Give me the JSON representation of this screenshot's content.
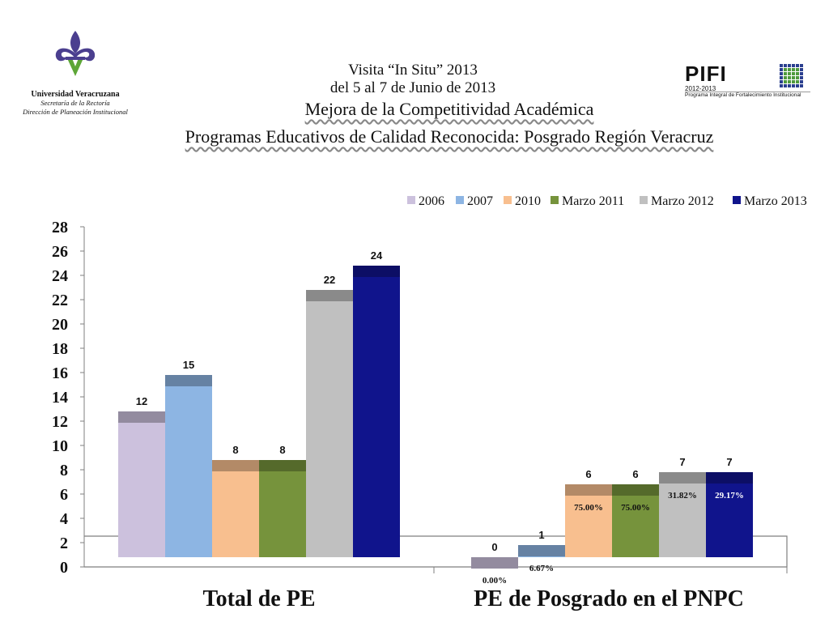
{
  "header": {
    "university": "Universidad Veracruzana",
    "secretaria": "Secretaría de la Rectoría",
    "direccion": "Dirección de Planeación Institucional",
    "visit_line1": "Visita “In Situ”  2013",
    "visit_line2": "del 5 al 7 de Junio de 2013",
    "title_line1": "Mejora de la Competitividad Académica",
    "title_line2": "Programas Educativos de Calidad Reconocida: Posgrado Región Veracruz",
    "pifi_word": "PIFI",
    "pifi_years": "2012-2013",
    "pifi_desc": "Programa Integral de Fortalecimiento Institucional"
  },
  "colors": {
    "2006": "#ccc1dd",
    "2007": "#8db5e3",
    "2010": "#f8bf8f",
    "Marzo 2011": "#76933c",
    "Marzo 2012": "#c0c0c0",
    "Marzo 2013": "#10148c",
    "uv_logo": "#4b3f8f",
    "uv_logo_accent": "#5da637",
    "pifi_grid_a": "#2b3f8f",
    "pifi_grid_b": "#4f9a3c"
  },
  "chart_data": {
    "type": "bar",
    "categories": [
      "Total de PE",
      "PE de Posgrado en el PNPC"
    ],
    "series": [
      {
        "name": "2006",
        "values": [
          12,
          0
        ],
        "labels": [
          "12",
          "0"
        ],
        "pct": [
          "",
          "0.00%"
        ]
      },
      {
        "name": "2007",
        "values": [
          15,
          1
        ],
        "labels": [
          "15",
          "1"
        ],
        "pct": [
          "",
          "6.67%"
        ]
      },
      {
        "name": "2010",
        "values": [
          8,
          6
        ],
        "labels": [
          "8",
          "6"
        ],
        "pct": [
          "",
          "75.00%"
        ]
      },
      {
        "name": "Marzo 2011",
        "values": [
          8,
          6
        ],
        "labels": [
          "8",
          "6"
        ],
        "pct": [
          "",
          "75.00%"
        ]
      },
      {
        "name": "Marzo 2012",
        "values": [
          22,
          7
        ],
        "labels": [
          "22",
          "7"
        ],
        "pct": [
          "",
          "31.82%"
        ]
      },
      {
        "name": "Marzo 2013",
        "values": [
          24,
          7
        ],
        "labels": [
          "24",
          "7"
        ],
        "pct": [
          "",
          "29.17%"
        ]
      }
    ],
    "ylim": [
      0,
      28
    ],
    "yticks": [
      "0",
      "2",
      "4",
      "6",
      "8",
      "10",
      "12",
      "14",
      "16",
      "18",
      "20",
      "22",
      "24",
      "26",
      "28"
    ],
    "legend": "top-right",
    "grid": false,
    "style": "3d"
  }
}
